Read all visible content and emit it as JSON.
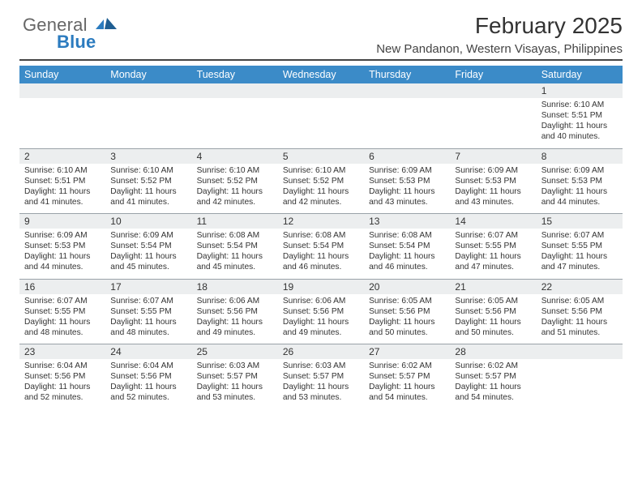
{
  "logo": {
    "general": "General",
    "blue": "Blue"
  },
  "header": {
    "month_title": "February 2025",
    "location": "New Pandanon, Western Visayas, Philippines"
  },
  "colors": {
    "header_bg": "#3b8bc8",
    "header_text": "#ffffff",
    "num_row_bg": "#eceeef",
    "num_row_border": "#9aa2a8",
    "title_rule": "#444444",
    "logo_blue": "#2b7bbf",
    "logo_gray": "#666666"
  },
  "fonts": {
    "title_size_pt": 21,
    "location_size_pt": 11,
    "weekday_size_pt": 9.5,
    "daynum_size_pt": 9,
    "body_size_pt": 7.7
  },
  "weekdays": [
    "Sunday",
    "Monday",
    "Tuesday",
    "Wednesday",
    "Thursday",
    "Friday",
    "Saturday"
  ],
  "weeks": [
    {
      "nums": [
        "",
        "",
        "",
        "",
        "",
        "",
        "1"
      ],
      "cells": [
        "",
        "",
        "",
        "",
        "",
        "",
        "Sunrise: 6:10 AM\nSunset: 5:51 PM\nDaylight: 11 hours and 40 minutes."
      ]
    },
    {
      "nums": [
        "2",
        "3",
        "4",
        "5",
        "6",
        "7",
        "8"
      ],
      "cells": [
        "Sunrise: 6:10 AM\nSunset: 5:51 PM\nDaylight: 11 hours and 41 minutes.",
        "Sunrise: 6:10 AM\nSunset: 5:52 PM\nDaylight: 11 hours and 41 minutes.",
        "Sunrise: 6:10 AM\nSunset: 5:52 PM\nDaylight: 11 hours and 42 minutes.",
        "Sunrise: 6:10 AM\nSunset: 5:52 PM\nDaylight: 11 hours and 42 minutes.",
        "Sunrise: 6:09 AM\nSunset: 5:53 PM\nDaylight: 11 hours and 43 minutes.",
        "Sunrise: 6:09 AM\nSunset: 5:53 PM\nDaylight: 11 hours and 43 minutes.",
        "Sunrise: 6:09 AM\nSunset: 5:53 PM\nDaylight: 11 hours and 44 minutes."
      ]
    },
    {
      "nums": [
        "9",
        "10",
        "11",
        "12",
        "13",
        "14",
        "15"
      ],
      "cells": [
        "Sunrise: 6:09 AM\nSunset: 5:53 PM\nDaylight: 11 hours and 44 minutes.",
        "Sunrise: 6:09 AM\nSunset: 5:54 PM\nDaylight: 11 hours and 45 minutes.",
        "Sunrise: 6:08 AM\nSunset: 5:54 PM\nDaylight: 11 hours and 45 minutes.",
        "Sunrise: 6:08 AM\nSunset: 5:54 PM\nDaylight: 11 hours and 46 minutes.",
        "Sunrise: 6:08 AM\nSunset: 5:54 PM\nDaylight: 11 hours and 46 minutes.",
        "Sunrise: 6:07 AM\nSunset: 5:55 PM\nDaylight: 11 hours and 47 minutes.",
        "Sunrise: 6:07 AM\nSunset: 5:55 PM\nDaylight: 11 hours and 47 minutes."
      ]
    },
    {
      "nums": [
        "16",
        "17",
        "18",
        "19",
        "20",
        "21",
        "22"
      ],
      "cells": [
        "Sunrise: 6:07 AM\nSunset: 5:55 PM\nDaylight: 11 hours and 48 minutes.",
        "Sunrise: 6:07 AM\nSunset: 5:55 PM\nDaylight: 11 hours and 48 minutes.",
        "Sunrise: 6:06 AM\nSunset: 5:56 PM\nDaylight: 11 hours and 49 minutes.",
        "Sunrise: 6:06 AM\nSunset: 5:56 PM\nDaylight: 11 hours and 49 minutes.",
        "Sunrise: 6:05 AM\nSunset: 5:56 PM\nDaylight: 11 hours and 50 minutes.",
        "Sunrise: 6:05 AM\nSunset: 5:56 PM\nDaylight: 11 hours and 50 minutes.",
        "Sunrise: 6:05 AM\nSunset: 5:56 PM\nDaylight: 11 hours and 51 minutes."
      ]
    },
    {
      "nums": [
        "23",
        "24",
        "25",
        "26",
        "27",
        "28",
        ""
      ],
      "cells": [
        "Sunrise: 6:04 AM\nSunset: 5:56 PM\nDaylight: 11 hours and 52 minutes.",
        "Sunrise: 6:04 AM\nSunset: 5:56 PM\nDaylight: 11 hours and 52 minutes.",
        "Sunrise: 6:03 AM\nSunset: 5:57 PM\nDaylight: 11 hours and 53 minutes.",
        "Sunrise: 6:03 AM\nSunset: 5:57 PM\nDaylight: 11 hours and 53 minutes.",
        "Sunrise: 6:02 AM\nSunset: 5:57 PM\nDaylight: 11 hours and 54 minutes.",
        "Sunrise: 6:02 AM\nSunset: 5:57 PM\nDaylight: 11 hours and 54 minutes.",
        ""
      ]
    }
  ]
}
